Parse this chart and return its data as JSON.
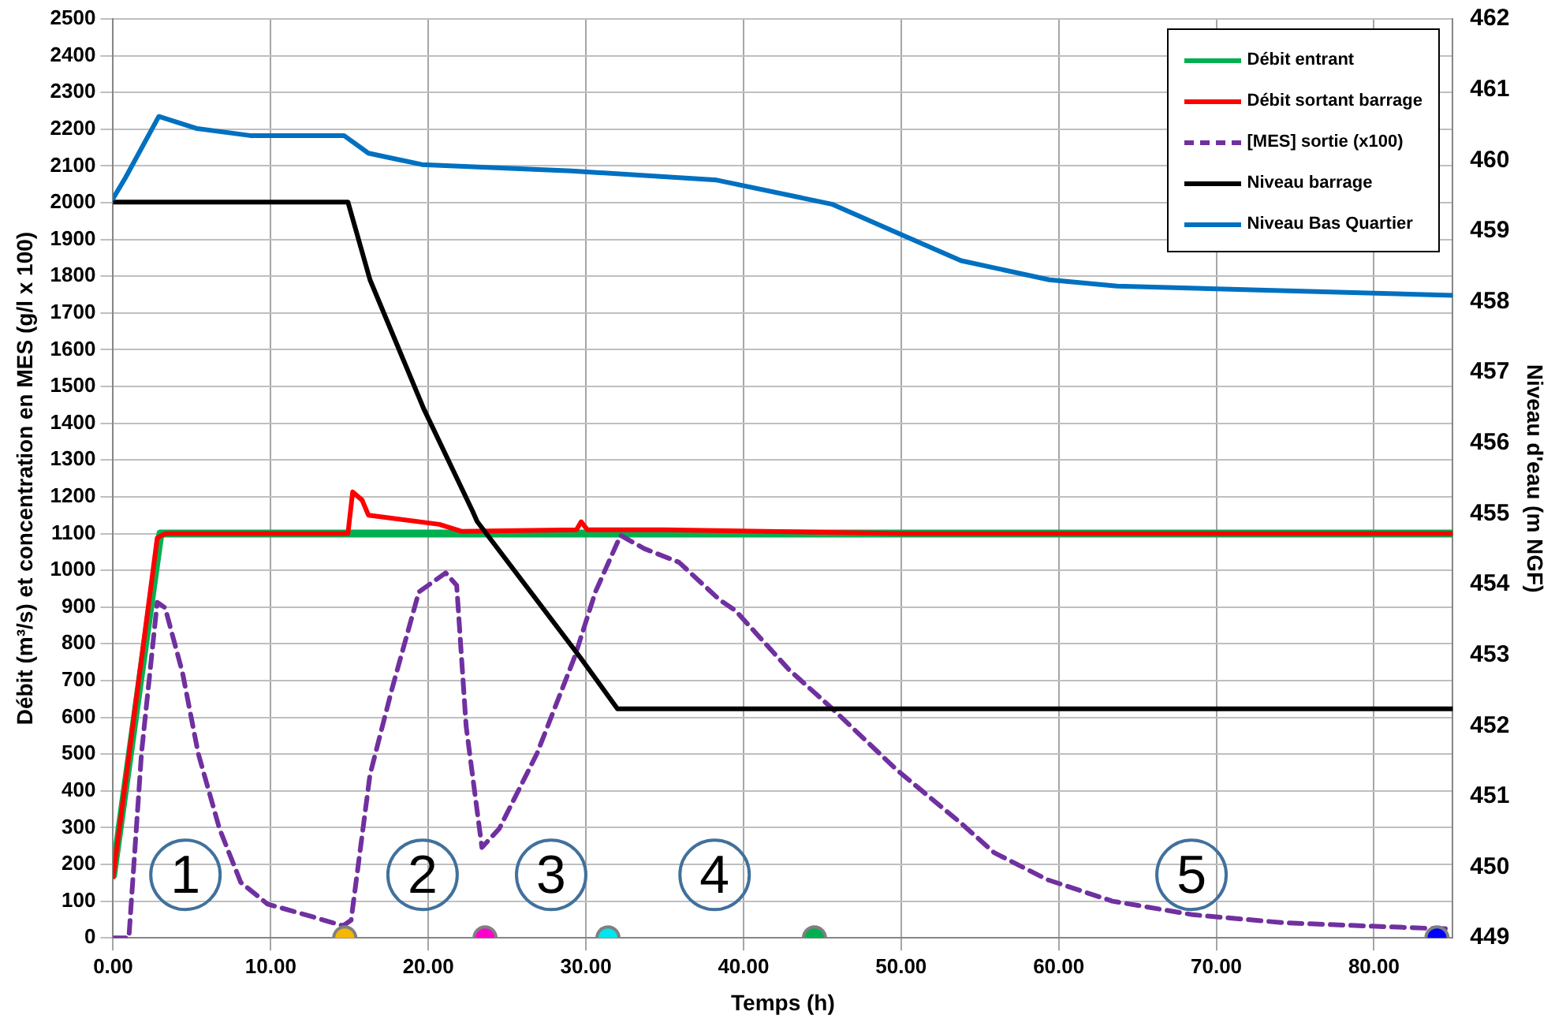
{
  "chart_data": {
    "type": "line",
    "xlabel": "Temps (h)",
    "ylabel": "Débit (m³/s) et concentration en MES (g/l x 100)",
    "y2label": "Niveau d'eau (m NGF)",
    "xlim": [
      0,
      85
    ],
    "xticks": [
      {
        "value": 0,
        "label": "0.00"
      },
      {
        "value": 10,
        "label": "10.00"
      },
      {
        "value": 20,
        "label": "20.00"
      },
      {
        "value": 30,
        "label": "30.00"
      },
      {
        "value": 40,
        "label": "40.00"
      },
      {
        "value": 50,
        "label": "50.00"
      },
      {
        "value": 60,
        "label": "60.00"
      },
      {
        "value": 70,
        "label": "70.00"
      },
      {
        "value": 80,
        "label": "80.00"
      }
    ],
    "ylim": [
      0,
      2500
    ],
    "yticks": [
      0,
      100,
      200,
      300,
      400,
      500,
      600,
      700,
      800,
      900,
      1000,
      1100,
      1200,
      1300,
      1400,
      1500,
      1600,
      1700,
      1800,
      1900,
      2000,
      2100,
      2200,
      2300,
      2400,
      2500
    ],
    "y2lim": [
      449,
      462
    ],
    "y2ticks": [
      449,
      450,
      451,
      452,
      453,
      454,
      455,
      456,
      457,
      458,
      459,
      460,
      461,
      462
    ],
    "grid": true,
    "legend": "top right",
    "series": [
      {
        "name": "Débit entrant",
        "color": "#00b050",
        "x": [
          0,
          3,
          85
        ],
        "values": [
          170,
          1100,
          1100
        ]
      },
      {
        "name": "Débit sortant barrage",
        "color": "#ff0000",
        "x": [
          0,
          2.8,
          3.3,
          14.9,
          15.2,
          15.8,
          16.2,
          20.7,
          22.1,
          29.4,
          29.7,
          30.1,
          35,
          50,
          85
        ],
        "values": [
          166,
          1088,
          1100,
          1100,
          1213,
          1191,
          1150,
          1125,
          1106,
          1110,
          1132,
          1110,
          1110,
          1100,
          1100
        ]
      },
      {
        "name": "[MES] sortie (x100)",
        "color": "#7030a0",
        "line_style": "dashed",
        "x": [
          0,
          1,
          1.8,
          2.8,
          3.3,
          4.4,
          5.4,
          6.75,
          8.1,
          9.8,
          12.2,
          14.6,
          15.1,
          16.3,
          17.7,
          19.4,
          21.1,
          21.8,
          22.4,
          23.4,
          24.5,
          26.9,
          29.3,
          30.6,
          32.2,
          33.7,
          35.9,
          38.5,
          39.5,
          42.9,
          45.6,
          49.7,
          53.8,
          55.9,
          59.3,
          63.4,
          68.5,
          74.3,
          83.5,
          85
        ],
        "values": [
          0,
          0,
          502,
          913,
          898,
          722,
          502,
          297,
          151,
          92,
          63,
          33,
          48,
          444,
          678,
          941,
          993,
          959,
          576,
          246,
          297,
          502,
          766,
          941,
          1095,
          1059,
          1022,
          919,
          890,
          729,
          625,
          458,
          312,
          232,
          158,
          100,
          63,
          41,
          26,
          25
        ]
      },
      {
        "name": "Niveau barrage",
        "color": "#000000",
        "axis": "y2",
        "x": [
          0,
          14.9,
          16.3,
          19.7,
          22.8,
          23.1,
          29.6,
          32,
          85
        ],
        "values": [
          459.41,
          459.41,
          458.31,
          456.49,
          455.04,
          454.89,
          452.98,
          452.24,
          452.24
        ]
      },
      {
        "name": "Niveau Bas Quartier",
        "color": "#0070c0",
        "axis": "y2",
        "x": [
          0,
          0.8,
          2.9,
          5.3,
          8.7,
          14.65,
          16.2,
          19.6,
          29.1,
          38.3,
          45.6,
          49.5,
          53.8,
          59.4,
          63.7,
          85
        ],
        "values": [
          459.46,
          459.76,
          460.62,
          460.45,
          460.35,
          460.35,
          460.1,
          459.94,
          459.85,
          459.72,
          459.38,
          459.0,
          458.58,
          458.31,
          458.22,
          458.09
        ]
      },
      {
        "type": "scatter",
        "marker": "circle",
        "x": [
          14.7,
          23.6,
          31.4,
          44.5,
          84
        ],
        "values": [
          0,
          0,
          0,
          0,
          0
        ],
        "colors": [
          "#f5b800",
          "#ff00cc",
          "#00e5ee",
          "#00b050",
          "#0000ff"
        ]
      }
    ],
    "annotations": [
      "1",
      "2",
      "3",
      "4",
      "5"
    ]
  }
}
